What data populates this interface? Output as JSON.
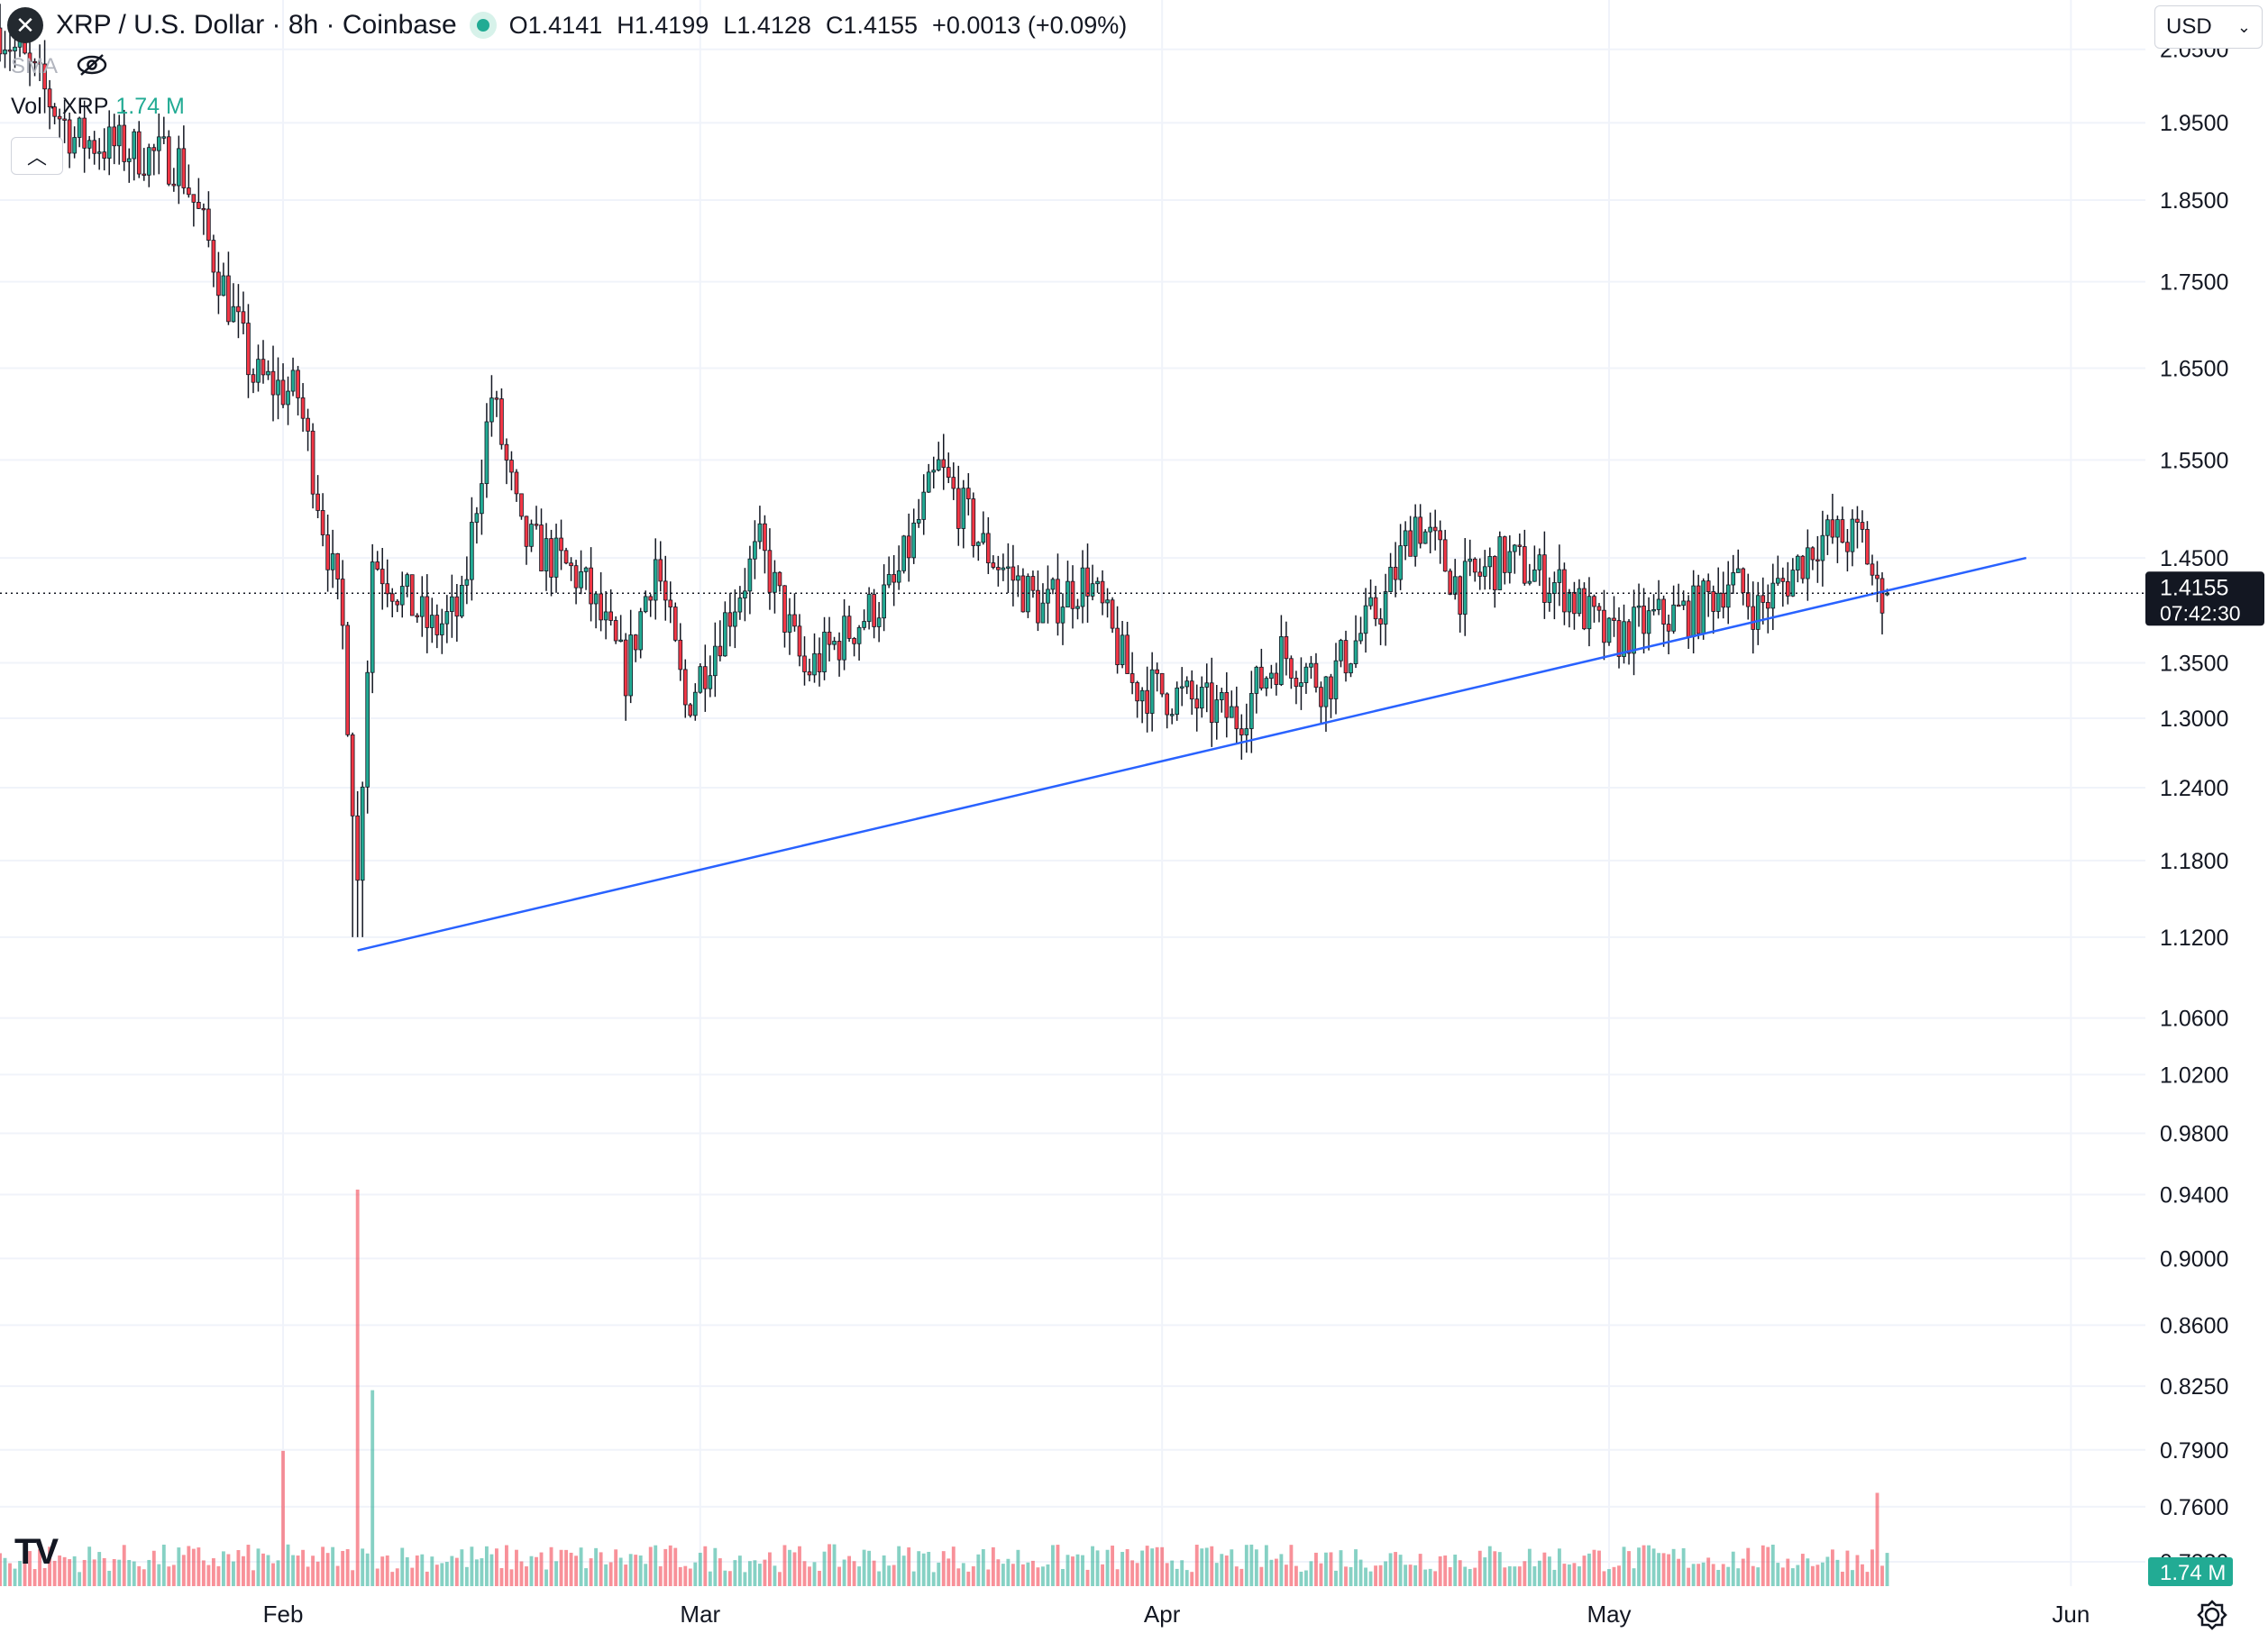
{
  "header": {
    "symbol_logo": "x-logo-icon",
    "title": "XRP / U.S. Dollar · 8h · Coinbase",
    "ohlc": {
      "open_label": "O",
      "open": "1.4141",
      "high_label": "H",
      "high": "1.4199",
      "low_label": "L",
      "low": "1.4128",
      "close_label": "C",
      "close": "1.4155",
      "change": "+0.0013 (+0.09%)"
    },
    "sma_label": "SMA",
    "volume_label": "Vol · XRP",
    "volume_value": "1.74 M"
  },
  "controls": {
    "collapse_icon": "chevron-up-icon",
    "currency": "USD",
    "currency_icon": "chevron-down-icon",
    "settings_icon": "gear-icon",
    "brand": "TV"
  },
  "colors": {
    "up": "#22ab94",
    "down": "#f23645",
    "trendline": "#2962ff",
    "grid": "#f0f3fa",
    "axis_text": "#131722"
  },
  "chart_data": {
    "type": "candlestick",
    "title": "XRP / U.S. Dollar · 8h · Coinbase",
    "y_scale": "log",
    "ylim": [
      0.72,
      2.12
    ],
    "y_ticks": [
      "2.0500",
      "1.9500",
      "1.8500",
      "1.7500",
      "1.6500",
      "1.5500",
      "1.4500",
      "1.3500",
      "1.3000",
      "1.2400",
      "1.1800",
      "1.1200",
      "1.0600",
      "1.0200",
      "0.9800",
      "0.9400",
      "0.9000",
      "0.8600",
      "0.8250",
      "0.7900",
      "0.7600",
      "0.7320"
    ],
    "x_ticks": [
      "Feb",
      "Mar",
      "Apr",
      "May",
      "Jun"
    ],
    "x_tick_dates": [
      "2026-02-01",
      "2026-03-01",
      "2026-04-01",
      "2026-05-01",
      "2026-06-01"
    ],
    "xlim": [
      "2026-01-13",
      "2026-06-06"
    ],
    "last_price": "1.4155",
    "countdown": "07:42:30",
    "volume_badge": "1.74 M",
    "grid": true,
    "price_anchors": [
      {
        "date": "2026-01-13",
        "close": 2.08
      },
      {
        "date": "2026-01-18",
        "close": 1.93
      },
      {
        "date": "2026-01-25",
        "close": 1.9
      },
      {
        "date": "2026-01-30",
        "close": 1.64
      },
      {
        "date": "2026-02-02",
        "close": 1.62
      },
      {
        "date": "2026-02-05",
        "close": 1.38
      },
      {
        "date": "2026-02-06",
        "close": 1.16
      },
      {
        "date": "2026-02-07",
        "close": 1.45
      },
      {
        "date": "2026-02-11",
        "close": 1.38
      },
      {
        "date": "2026-02-13",
        "close": 1.4
      },
      {
        "date": "2026-02-15",
        "close": 1.62
      },
      {
        "date": "2026-02-17",
        "close": 1.47
      },
      {
        "date": "2026-02-21",
        "close": 1.43
      },
      {
        "date": "2026-02-24",
        "close": 1.34
      },
      {
        "date": "2026-02-26",
        "close": 1.45
      },
      {
        "date": "2026-02-28",
        "close": 1.31
      },
      {
        "date": "2026-03-02",
        "close": 1.37
      },
      {
        "date": "2026-03-05",
        "close": 1.46
      },
      {
        "date": "2026-03-08",
        "close": 1.34
      },
      {
        "date": "2026-03-11",
        "close": 1.38
      },
      {
        "date": "2026-03-14",
        "close": 1.42
      },
      {
        "date": "2026-03-17",
        "close": 1.54
      },
      {
        "date": "2026-03-20",
        "close": 1.46
      },
      {
        "date": "2026-03-24",
        "close": 1.4
      },
      {
        "date": "2026-03-27",
        "close": 1.43
      },
      {
        "date": "2026-03-30",
        "close": 1.33
      },
      {
        "date": "2026-04-02",
        "close": 1.32
      },
      {
        "date": "2026-04-06",
        "close": 1.3
      },
      {
        "date": "2026-04-09",
        "close": 1.36
      },
      {
        "date": "2026-04-12",
        "close": 1.33
      },
      {
        "date": "2026-04-16",
        "close": 1.41
      },
      {
        "date": "2026-04-18",
        "close": 1.49
      },
      {
        "date": "2026-04-21",
        "close": 1.42
      },
      {
        "date": "2026-04-24",
        "close": 1.45
      },
      {
        "date": "2026-04-28",
        "close": 1.42
      },
      {
        "date": "2026-05-01",
        "close": 1.37
      },
      {
        "date": "2026-05-04",
        "close": 1.39
      },
      {
        "date": "2026-05-07",
        "close": 1.4
      },
      {
        "date": "2026-05-09",
        "close": 1.43
      },
      {
        "date": "2026-05-11",
        "close": 1.4
      },
      {
        "date": "2026-05-13",
        "close": 1.43
      },
      {
        "date": "2026-05-15",
        "close": 1.47
      },
      {
        "date": "2026-05-18",
        "close": 1.47
      },
      {
        "date": "2026-05-19",
        "close": 1.415
      }
    ],
    "trendline": {
      "from": {
        "date": "2026-02-06",
        "price": 1.11
      },
      "to": {
        "date": "2026-05-29",
        "price": 1.45
      }
    },
    "volume": {
      "typical_range": [
        0.03,
        0.09
      ],
      "spikes": [
        {
          "date": "2026-02-06",
          "relative": 0.85
        },
        {
          "date": "2026-02-07",
          "relative": 0.42
        },
        {
          "date": "2026-02-01",
          "relative": 0.29
        },
        {
          "date": "2026-05-19",
          "relative": 0.2
        }
      ]
    }
  }
}
